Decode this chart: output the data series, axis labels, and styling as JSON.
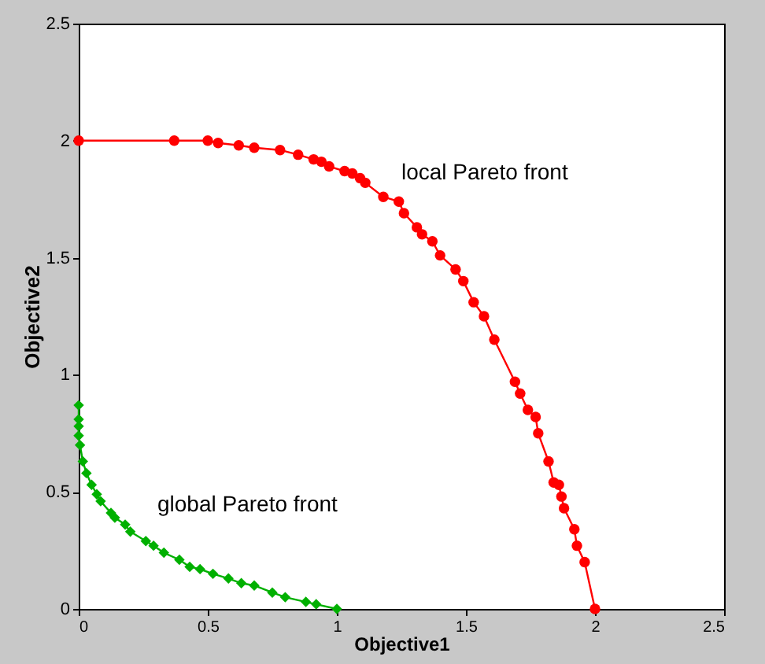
{
  "chart_data": {
    "type": "line",
    "xlabel": "Objective1",
    "ylabel": "Objective2",
    "xlim": [
      0,
      2.5
    ],
    "ylim": [
      0,
      2.5
    ],
    "xticks": [
      0,
      0.5,
      1,
      1.5,
      2,
      2.5
    ],
    "yticks": [
      0,
      0.5,
      1,
      1.5,
      2,
      2.5
    ],
    "grid": false,
    "series": [
      {
        "color": "#ff0000",
        "marker": "circle",
        "x": [
          0,
          0.37,
          0.5,
          0.54,
          0.62,
          0.68,
          0.78,
          0.85,
          0.91,
          0.94,
          0.97,
          1.03,
          1.06,
          1.09,
          1.11,
          1.18,
          1.24,
          1.26,
          1.31,
          1.33,
          1.37,
          1.4,
          1.46,
          1.49,
          1.53,
          1.57,
          1.61,
          1.69,
          1.71,
          1.74,
          1.77,
          1.78,
          1.82,
          1.84,
          1.86,
          1.87,
          1.88,
          1.92,
          1.93,
          1.96,
          2.0
        ],
        "values": [
          2.0,
          2.0,
          2.0,
          1.99,
          1.98,
          1.97,
          1.96,
          1.94,
          1.92,
          1.91,
          1.89,
          1.87,
          1.86,
          1.84,
          1.82,
          1.76,
          1.74,
          1.69,
          1.63,
          1.6,
          1.57,
          1.51,
          1.45,
          1.4,
          1.31,
          1.25,
          1.15,
          0.97,
          0.92,
          0.85,
          0.82,
          0.75,
          0.63,
          0.54,
          0.53,
          0.48,
          0.43,
          0.34,
          0.27,
          0.2,
          0
        ]
      },
      {
        "color": "#00b000",
        "marker": "diamond",
        "x": [
          0,
          0,
          0,
          0,
          0.005,
          0.016,
          0.03,
          0.05,
          0.07,
          0.085,
          0.125,
          0.14,
          0.18,
          0.2,
          0.26,
          0.29,
          0.33,
          0.39,
          0.43,
          0.47,
          0.52,
          0.58,
          0.63,
          0.68,
          0.75,
          0.8,
          0.88,
          0.92,
          1.0
        ],
        "values": [
          0.87,
          0.81,
          0.78,
          0.74,
          0.7,
          0.63,
          0.58,
          0.53,
          0.49,
          0.46,
          0.41,
          0.39,
          0.36,
          0.33,
          0.29,
          0.27,
          0.24,
          0.21,
          0.18,
          0.17,
          0.15,
          0.13,
          0.11,
          0.1,
          0.07,
          0.05,
          0.03,
          0.02,
          0
        ]
      }
    ],
    "annotations": [
      "local Pareto front",
      "global Pareto front"
    ]
  }
}
